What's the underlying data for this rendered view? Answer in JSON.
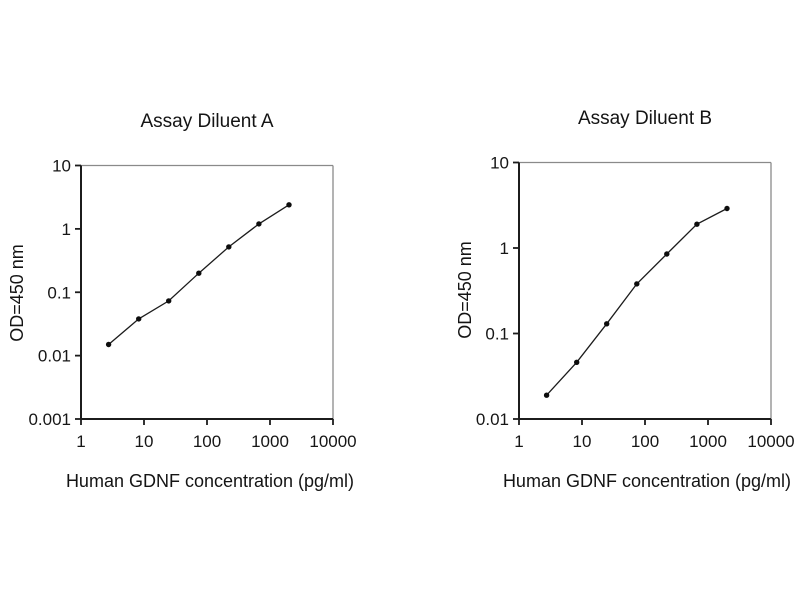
{
  "page": {
    "background_color": "#ffffff",
    "text_color": "#111111"
  },
  "chart_data": [
    {
      "type": "line",
      "title": "Assay Diluent A",
      "xlabel": "Human GDNF concentration (pg/ml)",
      "ylabel": "OD=450 nm",
      "xscale": "log",
      "yscale": "log",
      "xlim": [
        1,
        10000
      ],
      "ylim": [
        0.001,
        10
      ],
      "xticks": [
        1,
        10,
        100,
        1000,
        10000
      ],
      "yticks": [
        10,
        1,
        0.1,
        0.01,
        0.001
      ],
      "grid": false,
      "legend": false,
      "marker": "filled-circle",
      "x": [
        2.74,
        8.23,
        24.7,
        74.1,
        222,
        667,
        2000
      ],
      "y": [
        0.015,
        0.038,
        0.073,
        0.2,
        0.52,
        1.2,
        2.4
      ],
      "colors": {
        "line": "#1c1c1c",
        "marker": "#0d0d0d",
        "axis": "#1c1c1c",
        "frame": "#8a8a8a",
        "tick_text": "#161616"
      }
    },
    {
      "type": "line",
      "title": "Assay Diluent B",
      "xlabel": "Human GDNF concentration (pg/ml)",
      "ylabel": "OD=450 nm",
      "xscale": "log",
      "yscale": "log",
      "xlim": [
        1,
        10000
      ],
      "ylim": [
        0.01,
        10
      ],
      "xticks": [
        1,
        10,
        100,
        1000,
        10000
      ],
      "yticks": [
        10,
        1,
        0.1,
        0.01
      ],
      "grid": false,
      "legend": false,
      "marker": "filled-circle",
      "x": [
        2.74,
        8.23,
        24.7,
        74.1,
        222,
        667,
        2000
      ],
      "y": [
        0.019,
        0.046,
        0.13,
        0.38,
        0.85,
        1.9,
        2.9
      ],
      "colors": {
        "line": "#1c1c1c",
        "marker": "#0d0d0d",
        "axis": "#1c1c1c",
        "frame": "#8a8a8a",
        "tick_text": "#161616"
      }
    }
  ]
}
